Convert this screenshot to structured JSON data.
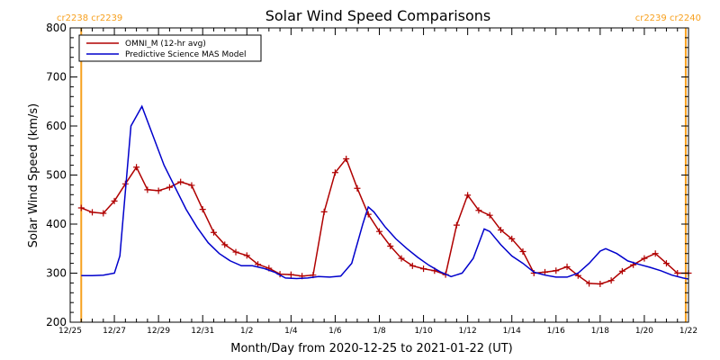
{
  "chart_data": {
    "type": "line",
    "title": "Solar Wind Speed Comparisons",
    "xlabel": "Month/Day from 2020-12-25 to 2021-01-22 (UT)",
    "ylabel": "Solar Wind Speed (km/s)",
    "xlim": [
      "2020-12-25",
      "2021-01-22"
    ],
    "ylim": [
      200,
      800
    ],
    "grid": false,
    "legend_position": "top-left",
    "yticks": [
      200,
      300,
      400,
      500,
      600,
      700,
      800
    ],
    "xticks": [
      {
        "date": "2020-12-25",
        "label": "12/25"
      },
      {
        "date": "2020-12-27",
        "label": "12/27"
      },
      {
        "date": "2020-12-29",
        "label": "12/29"
      },
      {
        "date": "2020-12-31",
        "label": "12/31"
      },
      {
        "date": "2021-01-02",
        "label": "1/2"
      },
      {
        "date": "2021-01-04",
        "label": "1/4"
      },
      {
        "date": "2021-01-06",
        "label": "1/6"
      },
      {
        "date": "2021-01-08",
        "label": "1/8"
      },
      {
        "date": "2021-01-10",
        "label": "1/10"
      },
      {
        "date": "2021-01-12",
        "label": "1/12"
      },
      {
        "date": "2021-01-14",
        "label": "1/14"
      },
      {
        "date": "2021-01-16",
        "label": "1/16"
      },
      {
        "date": "2021-01-18",
        "label": "1/18"
      },
      {
        "date": "2021-01-20",
        "label": "1/20"
      },
      {
        "date": "2021-01-22",
        "label": "1/22"
      }
    ],
    "carrington_markers": [
      {
        "date": "2020-12-25T12:00",
        "labels": [
          "cr2238",
          "cr2239"
        ],
        "label_side": "left",
        "color": "#f7a01e"
      },
      {
        "date": "2021-01-21T21:00",
        "labels": [
          "cr2239",
          "cr2240"
        ],
        "label_side": "right",
        "color": "#f7a01e"
      }
    ],
    "series": [
      {
        "name": "OMNI_M (12-hr avg)",
        "color": "#b00000",
        "marker": "plus",
        "points": [
          [
            "2020-12-25T12:00",
            433
          ],
          [
            "2020-12-26T00:00",
            424
          ],
          [
            "2020-12-26T12:00",
            422
          ],
          [
            "2020-12-27T00:00",
            447
          ],
          [
            "2020-12-27T12:00",
            482
          ],
          [
            "2020-12-28T00:00",
            516
          ],
          [
            "2020-12-28T12:00",
            470
          ],
          [
            "2020-12-29T00:00",
            468
          ],
          [
            "2020-12-29T12:00",
            475
          ],
          [
            "2020-12-30T00:00",
            486
          ],
          [
            "2020-12-30T12:00",
            479
          ],
          [
            "2020-12-31T00:00",
            430
          ],
          [
            "2020-12-31T12:00",
            383
          ],
          [
            "2021-01-01T00:00",
            358
          ],
          [
            "2021-01-01T12:00",
            343
          ],
          [
            "2021-01-02T00:00",
            336
          ],
          [
            "2021-01-02T12:00",
            318
          ],
          [
            "2021-01-03T00:00",
            310
          ],
          [
            "2021-01-03T12:00",
            298
          ],
          [
            "2021-01-04T00:00",
            297
          ],
          [
            "2021-01-04T12:00",
            294
          ],
          [
            "2021-01-05T00:00",
            296
          ],
          [
            "2021-01-05T12:00",
            425
          ],
          [
            "2021-01-06T00:00",
            505
          ],
          [
            "2021-01-06T12:00",
            533
          ],
          [
            "2021-01-07T00:00",
            473
          ],
          [
            "2021-01-07T12:00",
            420
          ],
          [
            "2021-01-08T00:00",
            385
          ],
          [
            "2021-01-08T12:00",
            355
          ],
          [
            "2021-01-09T00:00",
            330
          ],
          [
            "2021-01-09T12:00",
            315
          ],
          [
            "2021-01-10T00:00",
            309
          ],
          [
            "2021-01-10T12:00",
            305
          ],
          [
            "2021-01-11T00:00",
            297
          ],
          [
            "2021-01-11T12:00",
            398
          ],
          [
            "2021-01-12T00:00",
            459
          ],
          [
            "2021-01-12T12:00",
            428
          ],
          [
            "2021-01-13T00:00",
            418
          ],
          [
            "2021-01-13T12:00",
            388
          ],
          [
            "2021-01-14T00:00",
            370
          ],
          [
            "2021-01-14T12:00",
            344
          ],
          [
            "2021-01-15T00:00",
            300
          ],
          [
            "2021-01-15T12:00",
            302
          ],
          [
            "2021-01-16T00:00",
            305
          ],
          [
            "2021-01-16T12:00",
            313
          ],
          [
            "2021-01-17T00:00",
            295
          ],
          [
            "2021-01-17T12:00",
            279
          ],
          [
            "2021-01-18T00:00",
            278
          ],
          [
            "2021-01-18T12:00",
            285
          ],
          [
            "2021-01-19T00:00",
            304
          ],
          [
            "2021-01-19T12:00",
            317
          ],
          [
            "2021-01-20T00:00",
            330
          ],
          [
            "2021-01-20T12:00",
            340
          ],
          [
            "2021-01-21T00:00",
            320
          ],
          [
            "2021-01-21T12:00",
            300
          ],
          [
            "2021-01-22T00:00",
            300
          ]
        ]
      },
      {
        "name": "Predictive Science MAS Model",
        "color": "#0000cc",
        "marker": "none",
        "points": [
          [
            "2020-12-25T12:00",
            295
          ],
          [
            "2020-12-26T00:00",
            295
          ],
          [
            "2020-12-26T12:00",
            296
          ],
          [
            "2020-12-27T00:00",
            300
          ],
          [
            "2020-12-27T06:00",
            335
          ],
          [
            "2020-12-27T18:00",
            600
          ],
          [
            "2020-12-28T06:00",
            640
          ],
          [
            "2020-12-28T18:00",
            580
          ],
          [
            "2020-12-29T06:00",
            520
          ],
          [
            "2020-12-29T18:00",
            475
          ],
          [
            "2020-12-30T06:00",
            430
          ],
          [
            "2020-12-30T18:00",
            393
          ],
          [
            "2020-12-31T06:00",
            362
          ],
          [
            "2020-12-31T18:00",
            340
          ],
          [
            "2021-01-01T06:00",
            325
          ],
          [
            "2021-01-01T18:00",
            315
          ],
          [
            "2021-01-02T06:00",
            315
          ],
          [
            "2021-01-02T18:00",
            310
          ],
          [
            "2021-01-03T06:00",
            302
          ],
          [
            "2021-01-03T18:00",
            290
          ],
          [
            "2021-01-04T06:00",
            289
          ],
          [
            "2021-01-04T18:00",
            290
          ],
          [
            "2021-01-05T06:00",
            293
          ],
          [
            "2021-01-05T18:00",
            292
          ],
          [
            "2021-01-06T06:00",
            294
          ],
          [
            "2021-01-06T18:00",
            320
          ],
          [
            "2021-01-07T06:00",
            400
          ],
          [
            "2021-01-07T12:00",
            435
          ],
          [
            "2021-01-07T18:00",
            425
          ],
          [
            "2021-01-08T06:00",
            395
          ],
          [
            "2021-01-08T18:00",
            370
          ],
          [
            "2021-01-09T06:00",
            350
          ],
          [
            "2021-01-09T18:00",
            332
          ],
          [
            "2021-01-10T06:00",
            316
          ],
          [
            "2021-01-10T18:00",
            303
          ],
          [
            "2021-01-11T06:00",
            293
          ],
          [
            "2021-01-11T18:00",
            300
          ],
          [
            "2021-01-12T06:00",
            330
          ],
          [
            "2021-01-12T18:00",
            390
          ],
          [
            "2021-01-13T00:00",
            385
          ],
          [
            "2021-01-13T12:00",
            358
          ],
          [
            "2021-01-14T00:00",
            335
          ],
          [
            "2021-01-14T12:00",
            320
          ],
          [
            "2021-01-15T00:00",
            302
          ],
          [
            "2021-01-15T12:00",
            296
          ],
          [
            "2021-01-16T00:00",
            292
          ],
          [
            "2021-01-16T12:00",
            292
          ],
          [
            "2021-01-17T00:00",
            300
          ],
          [
            "2021-01-17T12:00",
            320
          ],
          [
            "2021-01-18T00:00",
            345
          ],
          [
            "2021-01-18T06:00",
            350
          ],
          [
            "2021-01-18T18:00",
            340
          ],
          [
            "2021-01-19T06:00",
            325
          ],
          [
            "2021-01-19T18:00",
            318
          ],
          [
            "2021-01-20T06:00",
            312
          ],
          [
            "2021-01-20T18:00",
            305
          ],
          [
            "2021-01-21T06:00",
            296
          ],
          [
            "2021-01-21T18:00",
            290
          ],
          [
            "2021-01-22T00:00",
            288
          ]
        ]
      }
    ]
  }
}
